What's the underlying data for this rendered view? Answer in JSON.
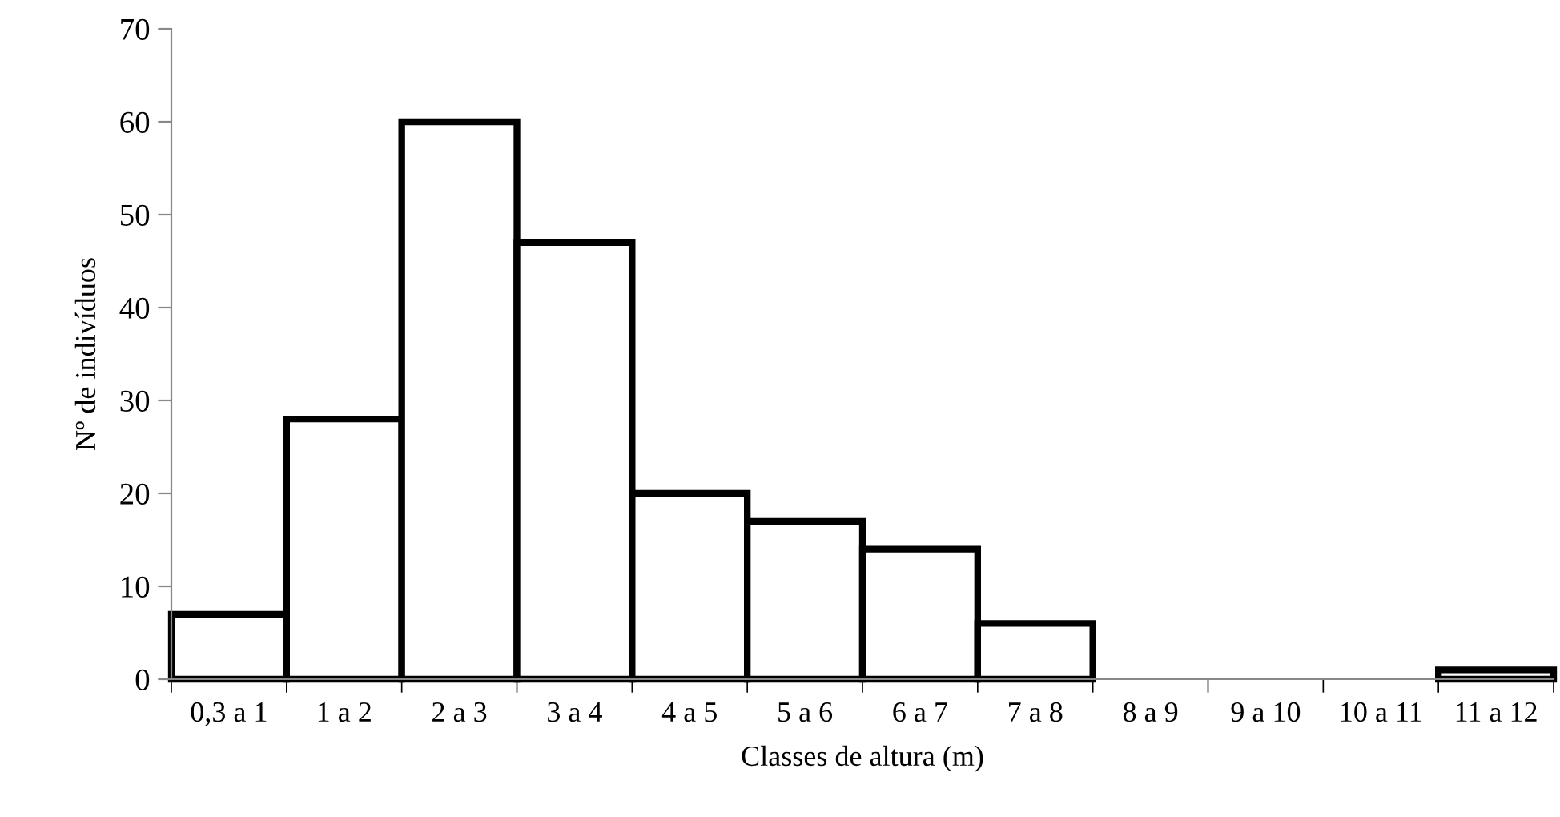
{
  "chart_data": {
    "type": "bar",
    "xlabel": "Classes de altura (m)",
    "ylabel": "Nº de indivíduos",
    "categories": [
      "0,3 a 1",
      "1 a 2",
      "2 a 3",
      "3 a 4",
      "4 a 5",
      "5 a 6",
      "6 a 7",
      "7 a 8",
      "8 a 9",
      "9 a 10",
      "10 a 11",
      "11 a 12"
    ],
    "values": [
      7,
      28,
      60,
      47,
      20,
      17,
      14,
      6,
      0,
      0,
      0,
      1
    ],
    "color": "#ffffff",
    "ylim": [
      0,
      70
    ],
    "yticks": [
      0,
      10,
      20,
      30,
      40,
      50,
      60,
      70
    ],
    "grid": false
  }
}
